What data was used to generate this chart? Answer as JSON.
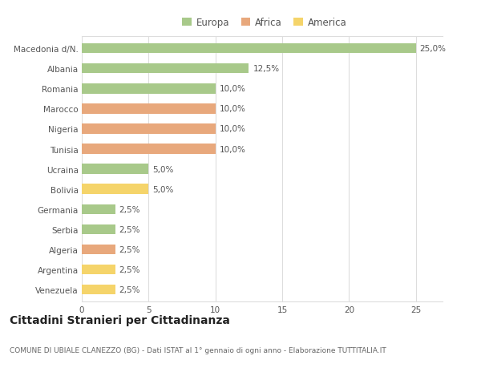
{
  "categories": [
    "Macedonia d/N.",
    "Albania",
    "Romania",
    "Marocco",
    "Nigeria",
    "Tunisia",
    "Ucraina",
    "Bolivia",
    "Germania",
    "Serbia",
    "Algeria",
    "Argentina",
    "Venezuela"
  ],
  "values": [
    25.0,
    12.5,
    10.0,
    10.0,
    10.0,
    10.0,
    5.0,
    5.0,
    2.5,
    2.5,
    2.5,
    2.5,
    2.5
  ],
  "colors": [
    "#a8c98a",
    "#a8c98a",
    "#a8c98a",
    "#e8a87c",
    "#e8a87c",
    "#e8a87c",
    "#a8c98a",
    "#f5d46a",
    "#a8c98a",
    "#a8c98a",
    "#e8a87c",
    "#f5d46a",
    "#f5d46a"
  ],
  "labels": [
    "25,0%",
    "12,5%",
    "10,0%",
    "10,0%",
    "10,0%",
    "10,0%",
    "5,0%",
    "5,0%",
    "2,5%",
    "2,5%",
    "2,5%",
    "2,5%",
    "2,5%"
  ],
  "legend": [
    {
      "label": "Europa",
      "color": "#a8c98a"
    },
    {
      "label": "Africa",
      "color": "#e8a87c"
    },
    {
      "label": "America",
      "color": "#f5d46a"
    }
  ],
  "title": "Cittadini Stranieri per Cittadinanza",
  "subtitle": "COMUNE DI UBIALE CLANEZZO (BG) - Dati ISTAT al 1° gennaio di ogni anno - Elaborazione TUTTITALIA.IT",
  "xlim": [
    0,
    27
  ],
  "xticks": [
    0,
    5,
    10,
    15,
    20,
    25
  ],
  "background_color": "#ffffff",
  "grid_color": "#dddddd",
  "bar_height": 0.5,
  "label_fontsize": 7.5,
  "title_fontsize": 10,
  "subtitle_fontsize": 6.5,
  "tick_fontsize": 7.5,
  "legend_fontsize": 8.5
}
